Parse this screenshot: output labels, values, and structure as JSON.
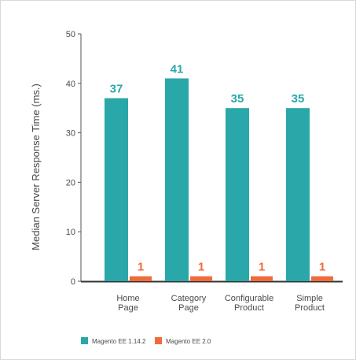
{
  "chart_data": {
    "type": "bar",
    "ylabel": "Median Server Response Time (ms.)",
    "xlabel": "",
    "title": "",
    "ylim": [
      0,
      50
    ],
    "yticks": [
      0,
      10,
      20,
      30,
      40,
      50
    ],
    "categories": [
      [
        "Home",
        "Page"
      ],
      [
        "Category",
        "Page"
      ],
      [
        "Configurable",
        "Product"
      ],
      [
        "Simple",
        "Product"
      ]
    ],
    "series": [
      {
        "name": "Magento EE 1.14.2",
        "color": "#2aa7a9",
        "values": [
          37,
          41,
          35,
          35
        ]
      },
      {
        "name": "Magento EE 2.0",
        "color": "#f06a3a",
        "values": [
          1,
          1,
          1,
          1
        ]
      }
    ],
    "data_labels": true,
    "grid": false,
    "legend_position": "bottom-left"
  }
}
